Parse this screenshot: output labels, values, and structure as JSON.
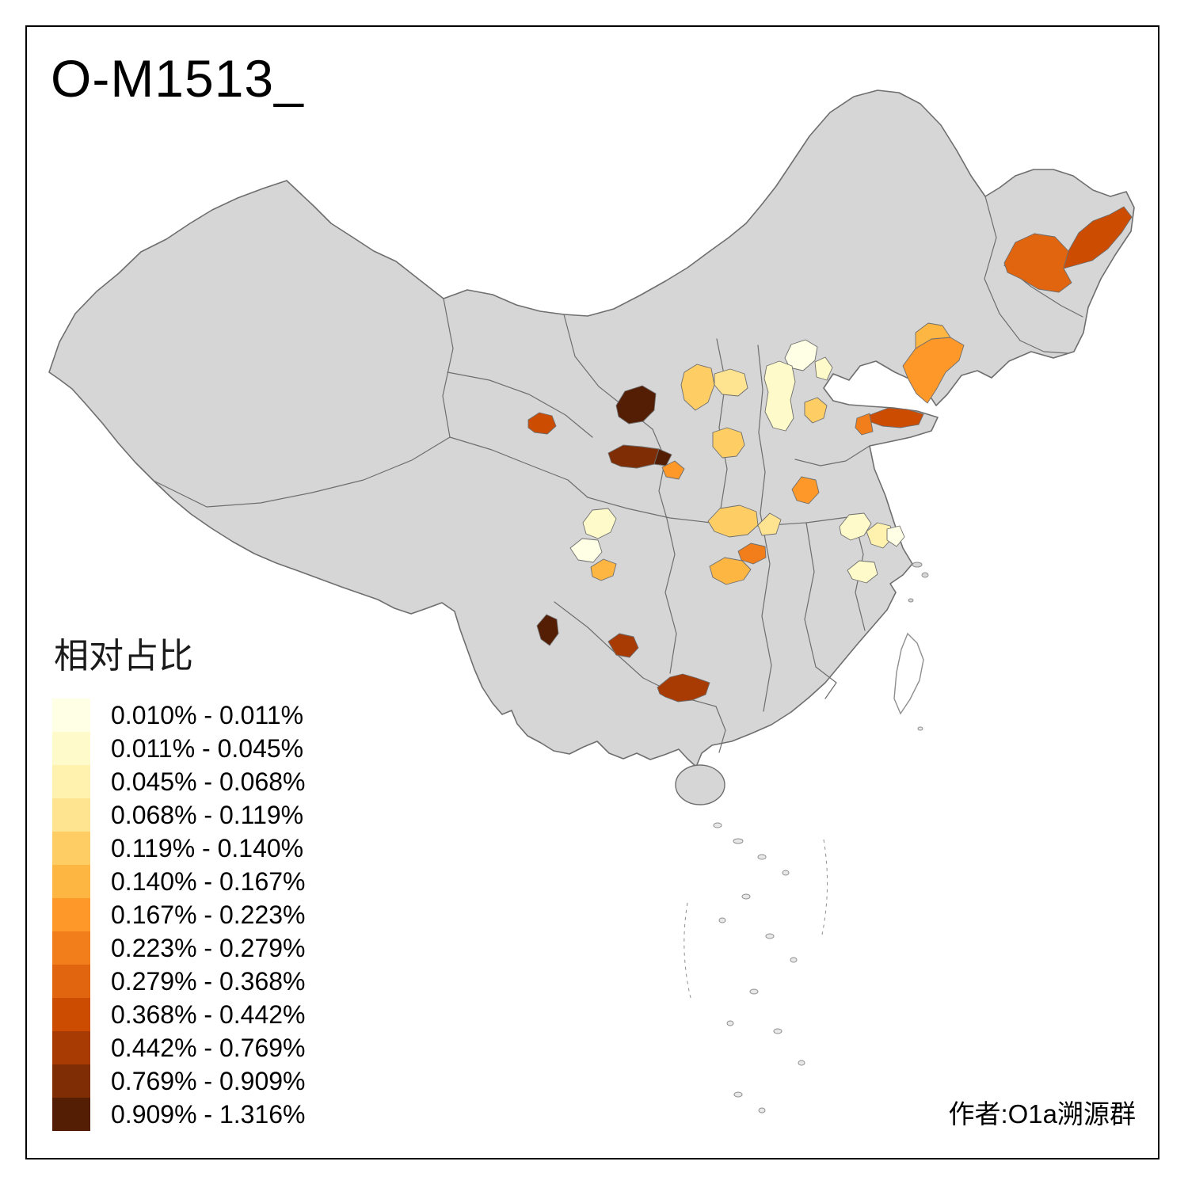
{
  "title": "O-M1513_",
  "attribution": "作者:O1a溯源群",
  "legend": {
    "title": "相对占比",
    "classes": [
      {
        "label": "0.010% - 0.011%",
        "color": "#FFFFE5"
      },
      {
        "label": "0.011% - 0.045%",
        "color": "#FFFAC9"
      },
      {
        "label": "0.045% - 0.068%",
        "color": "#FFF2AE"
      },
      {
        "label": "0.068% - 0.119%",
        "color": "#FEE391"
      },
      {
        "label": "0.119% - 0.140%",
        "color": "#FECE65"
      },
      {
        "label": "0.140% - 0.167%",
        "color": "#FEB643"
      },
      {
        "label": "0.167% - 0.223%",
        "color": "#FE9929"
      },
      {
        "label": "0.223% - 0.279%",
        "color": "#F27E1B"
      },
      {
        "label": "0.279% - 0.368%",
        "color": "#E1640E"
      },
      {
        "label": "0.368% - 0.442%",
        "color": "#CC4C02"
      },
      {
        "label": "0.442% - 0.769%",
        "color": "#A83B03"
      },
      {
        "label": "0.769% - 0.909%",
        "color": "#7E2D04"
      },
      {
        "label": "0.909% - 1.316%",
        "color": "#541E04"
      }
    ]
  },
  "map": {
    "base_fill": "#D6D6D6",
    "border_color": "#6E6E6E",
    "regions": [
      {
        "id": "heilongjiang-west",
        "class": 8
      },
      {
        "id": "heilongjiang-east",
        "class": 9
      },
      {
        "id": "liaoning-peninsula",
        "class": 6
      },
      {
        "id": "liaoning-north",
        "class": 5
      },
      {
        "id": "beijing",
        "class": 0
      },
      {
        "id": "tianjin",
        "class": 1
      },
      {
        "id": "shanxi-north",
        "class": 4
      },
      {
        "id": "hebei-west",
        "class": 3
      },
      {
        "id": "hebei-south",
        "class": 1
      },
      {
        "id": "hebei-small",
        "class": 4
      },
      {
        "id": "shanxi-south",
        "class": 4
      },
      {
        "id": "shandong-mid",
        "class": 7
      },
      {
        "id": "shandong-tip",
        "class": 9
      },
      {
        "id": "gansu-north",
        "class": 12
      },
      {
        "id": "gansu-south",
        "class": 11
      },
      {
        "id": "gansu-south-east",
        "class": 12
      },
      {
        "id": "gansu-orange",
        "class": 6
      },
      {
        "id": "qinghai-east",
        "class": 9
      },
      {
        "id": "sichuan-pale-1",
        "class": 1
      },
      {
        "id": "sichuan-pale-2",
        "class": 0
      },
      {
        "id": "sichuan-orange",
        "class": 5
      },
      {
        "id": "shaanxi-south-orange",
        "class": 4
      },
      {
        "id": "henan-light",
        "class": 3
      },
      {
        "id": "henan-northeast",
        "class": 6
      },
      {
        "id": "hubei-small-orange",
        "class": 7
      },
      {
        "id": "hubei-yellow",
        "class": 5
      },
      {
        "id": "anhui-pale-1",
        "class": 1
      },
      {
        "id": "anhui-pale-2",
        "class": 2
      },
      {
        "id": "jiangsu-pale",
        "class": 1
      },
      {
        "id": "jiangsu-tiny",
        "class": 0
      },
      {
        "id": "yunnan-northeast",
        "class": 12
      },
      {
        "id": "guizhou-west",
        "class": 10
      },
      {
        "id": "guizhou-south",
        "class": 10
      }
    ]
  }
}
